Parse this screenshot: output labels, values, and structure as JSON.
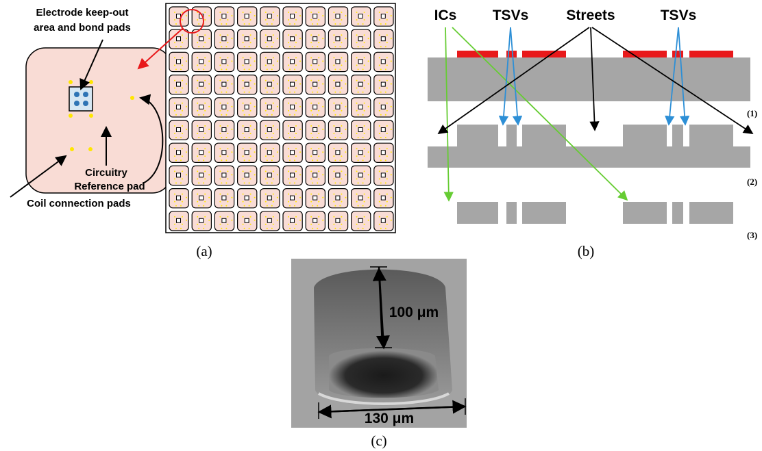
{
  "panel_a": {
    "label": "(a)",
    "callouts": {
      "electrode": [
        "Electrode keep-out",
        "area and bond pads"
      ],
      "circuitry": "Circuitry",
      "reference_pad": "Reference pad",
      "coil_pads": "Coil connection pads"
    }
  },
  "panel_b": {
    "label": "(b)",
    "callouts": [
      "ICs",
      "TSVs",
      "Streets",
      "TSVs"
    ],
    "steps": [
      "(1)",
      "(2)",
      "(3)"
    ]
  },
  "panel_c": {
    "label": "(c)",
    "depth": "100 μm",
    "width": "130 μm"
  }
}
